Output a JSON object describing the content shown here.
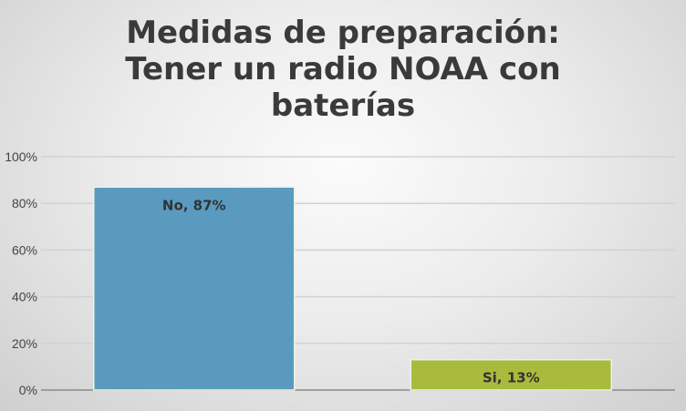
{
  "chart_data": {
    "type": "bar",
    "title_lines": [
      "Medidas de preparación:",
      "Tener un radio NOAA con",
      "baterías"
    ],
    "categories": [
      "No",
      "Si"
    ],
    "values": [
      87,
      13
    ],
    "data_labels": [
      "No, 87%",
      "Si, 13%"
    ],
    "colors": [
      "#5a9abf",
      "#a9bb3c"
    ],
    "ylim": [
      0,
      100
    ],
    "yticks": [
      0,
      20,
      40,
      60,
      80,
      100
    ],
    "ytick_labels": [
      "0%",
      "20%",
      "40%",
      "60%",
      "80%",
      "100%"
    ],
    "grid": true,
    "legend": "none",
    "xlabel": "",
    "ylabel": ""
  }
}
